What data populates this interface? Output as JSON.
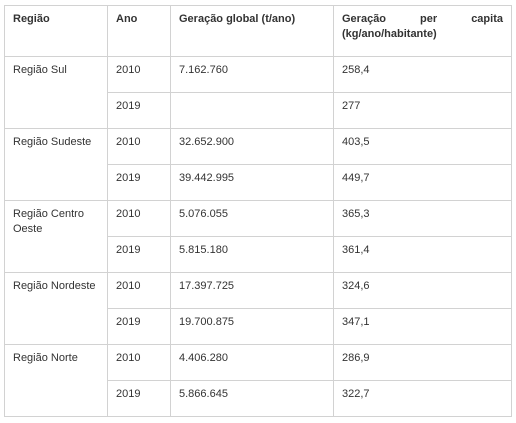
{
  "table": {
    "headers": {
      "region": "Região",
      "year": "Ano",
      "global": "Geração global (t/ano)",
      "capita_words": [
        "Geração",
        "per",
        "capita"
      ],
      "capita_line2": "(kg/ano/habitante)"
    },
    "groups": [
      {
        "region": "Região Sul",
        "rows": [
          {
            "year": "2010",
            "global": "7.162.760",
            "capita": "258,4"
          },
          {
            "year": "2019",
            "global": "",
            "capita": "277"
          }
        ]
      },
      {
        "region": "Região Sudeste",
        "rows": [
          {
            "year": "2010",
            "global": "32.652.900",
            "capita": "403,5"
          },
          {
            "year": "2019",
            "global": "39.442.995",
            "capita": "449,7"
          }
        ]
      },
      {
        "region": "Região Centro Oeste",
        "rows": [
          {
            "year": "2010",
            "global": "5.076.055",
            "capita": "365,3"
          },
          {
            "year": "2019",
            "global": "5.815.180",
            "capita": "361,4"
          }
        ]
      },
      {
        "region": "Região Nordeste",
        "rows": [
          {
            "year": "2010",
            "global": "17.397.725",
            "capita": "324,6"
          },
          {
            "year": "2019",
            "global": "19.700.875",
            "capita": "347,1"
          }
        ]
      },
      {
        "region": "Região Norte",
        "rows": [
          {
            "year": "2010",
            "global": "4.406.280",
            "capita": "286,9"
          },
          {
            "year": "2019",
            "global": "5.866.645",
            "capita": "322,7"
          }
        ]
      }
    ]
  }
}
